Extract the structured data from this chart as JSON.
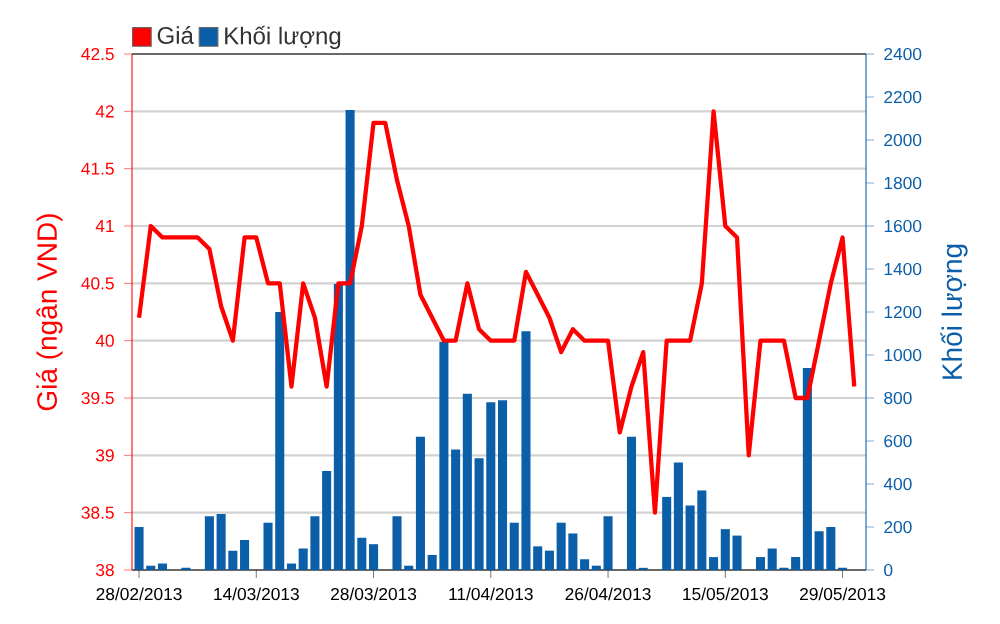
{
  "chart_data": {
    "type": "line",
    "categories": [
      "28/02/2013",
      null,
      null,
      null,
      null,
      null,
      null,
      null,
      null,
      null,
      "14/03/2013",
      null,
      null,
      null,
      null,
      null,
      null,
      null,
      null,
      null,
      "28/03/2013",
      null,
      null,
      null,
      null,
      null,
      null,
      null,
      null,
      null,
      "11/04/2013",
      null,
      null,
      null,
      null,
      null,
      null,
      null,
      null,
      null,
      "26/04/2013",
      null,
      null,
      null,
      null,
      null,
      null,
      null,
      null,
      null,
      "15/05/2013",
      null,
      null,
      null,
      null,
      null,
      null,
      null,
      null,
      null,
      "29/05/2013",
      null
    ],
    "series": [
      {
        "name": "Khối lượng",
        "type": "bar",
        "axis": "y2",
        "color": "#0b5ea8",
        "values": [
          200,
          20,
          30,
          null,
          10,
          null,
          250,
          260,
          90,
          140,
          null,
          220,
          1200,
          30,
          100,
          250,
          460,
          1330,
          2140,
          150,
          120,
          null,
          250,
          20,
          620,
          70,
          1060,
          560,
          820,
          520,
          780,
          790,
          220,
          1110,
          110,
          90,
          220,
          170,
          50,
          20,
          250,
          null,
          620,
          10,
          null,
          340,
          500,
          300,
          370,
          60,
          190,
          160,
          null,
          60,
          100,
          10,
          60,
          940,
          180,
          200,
          10,
          null
        ]
      },
      {
        "name": "Giá",
        "color": "#ff0000",
        "values": [
          40.2,
          41.0,
          40.9,
          40.9,
          40.9,
          40.9,
          40.8,
          40.3,
          40.0,
          40.9,
          40.9,
          40.5,
          40.5,
          39.6,
          40.5,
          40.2,
          39.6,
          40.5,
          40.5,
          41.0,
          41.9,
          41.9,
          41.4,
          41.0,
          40.4,
          40.2,
          40.0,
          40.0,
          40.5,
          40.1,
          40.0,
          40.0,
          40.0,
          40.6,
          40.4,
          40.2,
          39.9,
          40.1,
          40.0,
          40.0,
          40.0,
          39.2,
          39.6,
          39.9,
          38.5,
          40.0,
          40.0,
          40.0,
          40.5,
          42.0,
          41.0,
          40.9,
          39.0,
          40.0,
          40.0,
          40.0,
          39.5,
          39.5,
          40.0,
          40.5,
          40.9,
          39.6
        ]
      }
    ],
    "ylabel": "Giá (ngân VND)",
    "y2label": "Khối lượng",
    "ylim": [
      38,
      42.5
    ],
    "yticks": [
      38,
      38.5,
      39,
      39.5,
      40,
      40.5,
      41,
      41.5,
      42,
      42.5
    ],
    "y2lim": [
      0,
      2400
    ],
    "y2ticks": [
      0,
      200,
      400,
      600,
      800,
      1000,
      1200,
      1400,
      1600,
      1800,
      2000,
      2200,
      2400
    ],
    "grid": "y",
    "legend": "top left"
  }
}
